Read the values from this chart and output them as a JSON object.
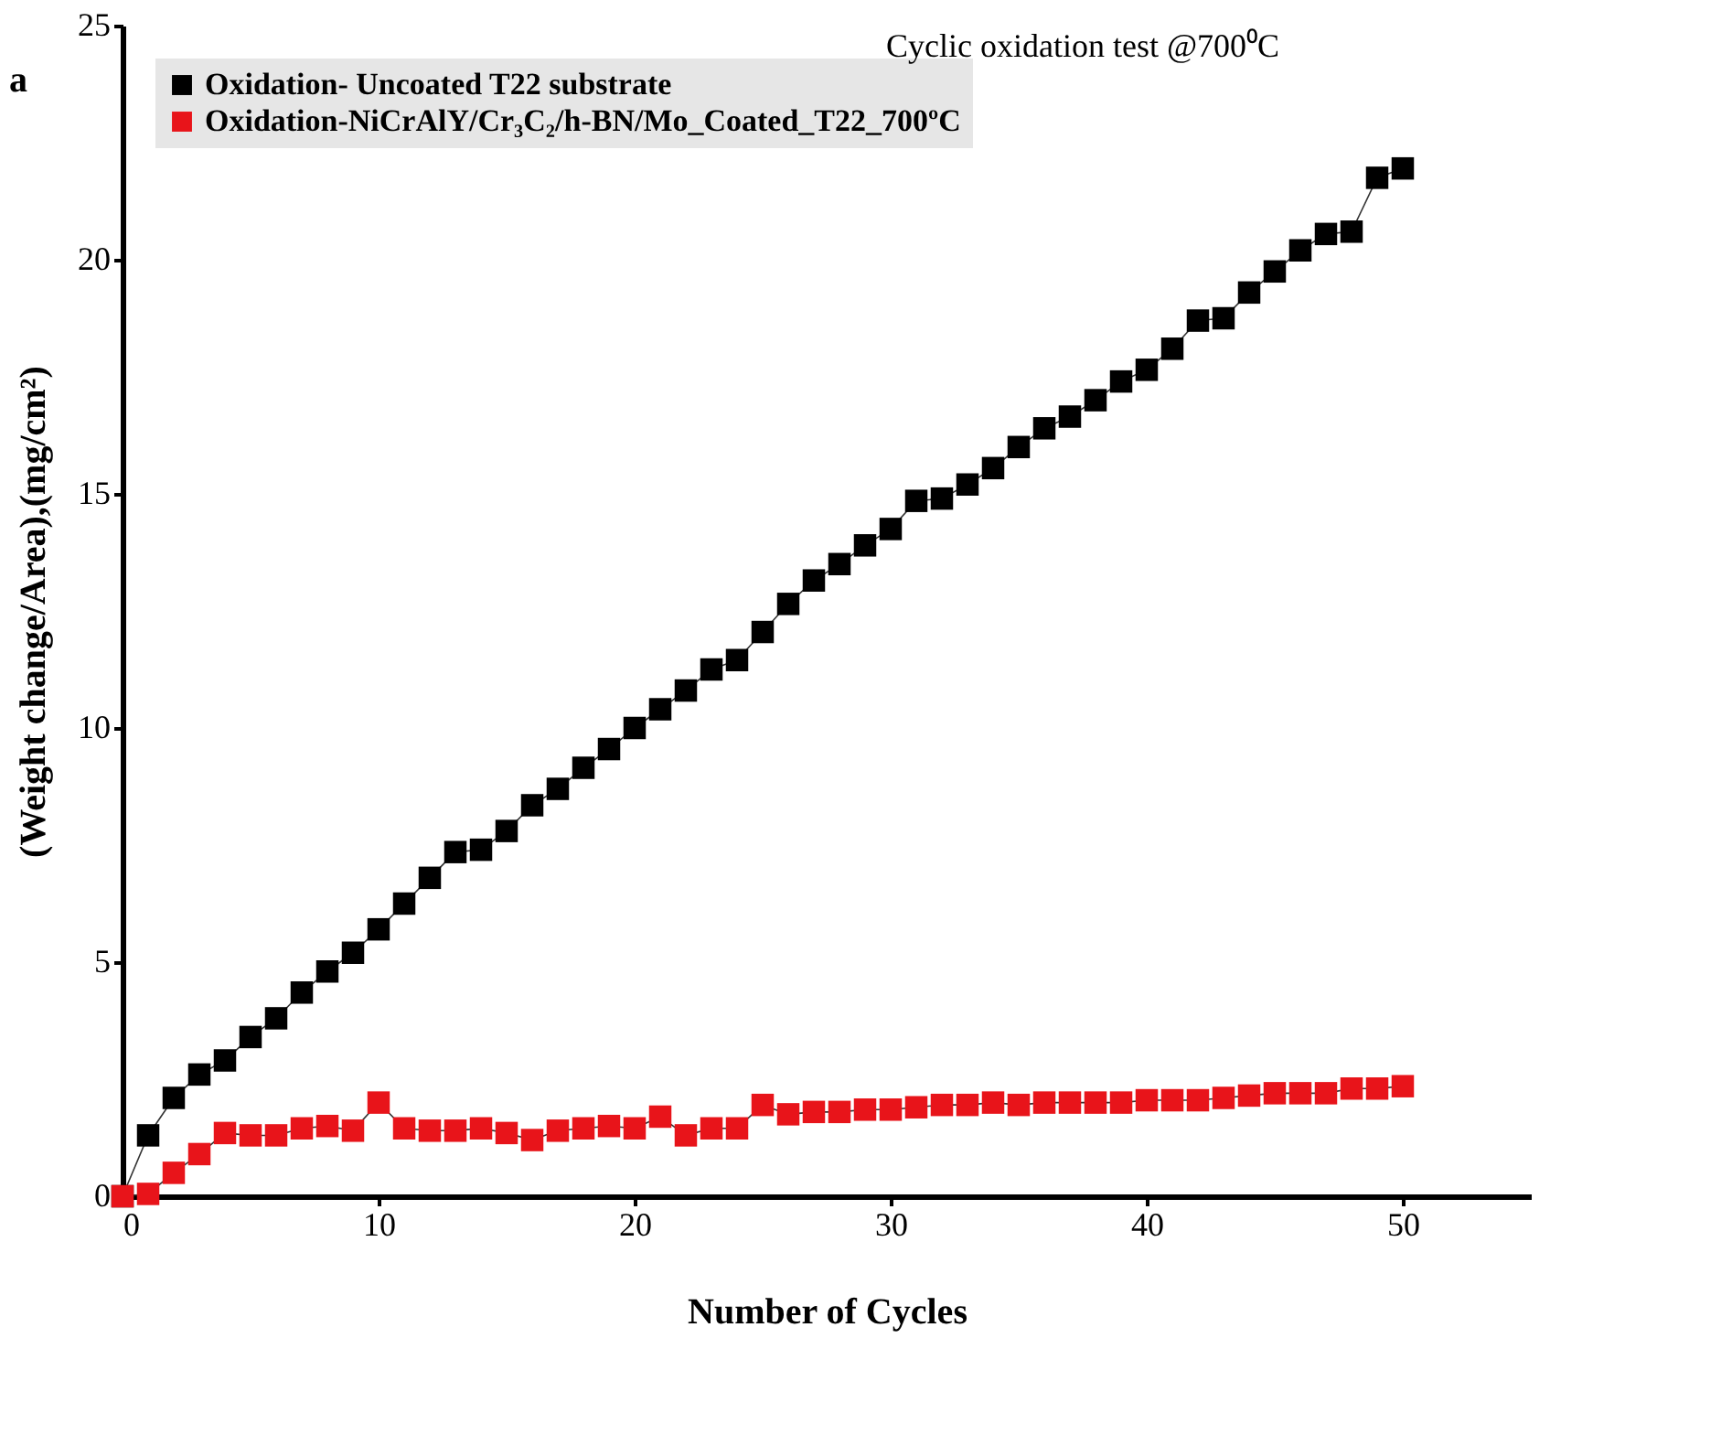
{
  "chart_data": {
    "type": "line",
    "title": "Cyclic oxidation test @700⁰C",
    "xlabel": "Number of Cycles",
    "ylabel": "(Weight change/Area),(mg/cm²)",
    "annotations": [
      "a"
    ],
    "x": [
      0,
      1,
      2,
      3,
      4,
      5,
      6,
      7,
      8,
      9,
      10,
      11,
      12,
      13,
      14,
      15,
      16,
      17,
      18,
      19,
      20,
      21,
      22,
      23,
      24,
      25,
      26,
      27,
      28,
      29,
      30,
      31,
      32,
      33,
      34,
      35,
      36,
      37,
      38,
      39,
      40,
      41,
      42,
      43,
      44,
      45,
      46,
      47,
      48,
      49,
      50
    ],
    "series": [
      {
        "name": "Oxidation- Uncoated T22 substrate",
        "color": "#000000",
        "values": [
          0,
          1.3,
          2.1,
          2.6,
          2.9,
          3.4,
          3.8,
          4.35,
          4.8,
          5.2,
          5.7,
          6.25,
          6.8,
          7.35,
          7.4,
          7.8,
          8.35,
          8.7,
          9.15,
          9.55,
          10.0,
          10.4,
          10.8,
          11.25,
          11.45,
          12.05,
          12.65,
          13.15,
          13.5,
          13.9,
          14.25,
          14.85,
          14.9,
          15.2,
          15.55,
          16.0,
          16.4,
          16.65,
          17.0,
          17.4,
          17.65,
          18.1,
          18.7,
          18.75,
          19.3,
          19.75,
          20.2,
          20.55,
          20.6,
          21.75,
          21.95
        ]
      },
      {
        "name": "Oxidation-NiCrAlY/Cr₃C₂/h-BN/Mo_Coated_T22_700ºC",
        "color": "#e8141a",
        "values": [
          0,
          0.05,
          0.5,
          0.9,
          1.35,
          1.3,
          1.3,
          1.45,
          1.5,
          1.4,
          2.0,
          1.45,
          1.4,
          1.4,
          1.45,
          1.35,
          1.2,
          1.4,
          1.45,
          1.5,
          1.45,
          1.7,
          1.3,
          1.45,
          1.45,
          1.95,
          1.75,
          1.8,
          1.8,
          1.85,
          1.85,
          1.9,
          1.95,
          1.95,
          2.0,
          1.95,
          2.0,
          2.0,
          2.0,
          2.0,
          2.05,
          2.05,
          2.05,
          2.1,
          2.15,
          2.2,
          2.2,
          2.2,
          2.3,
          2.3,
          2.35
        ]
      }
    ],
    "xlim": [
      0,
      55
    ],
    "xticks": [
      0,
      10,
      20,
      30,
      40,
      50
    ],
    "ylim": [
      0,
      25
    ],
    "yticks": [
      0,
      5,
      10,
      15,
      20,
      25
    ],
    "grid": false,
    "legend": "top left",
    "marker": "square",
    "line_style": "solid"
  }
}
